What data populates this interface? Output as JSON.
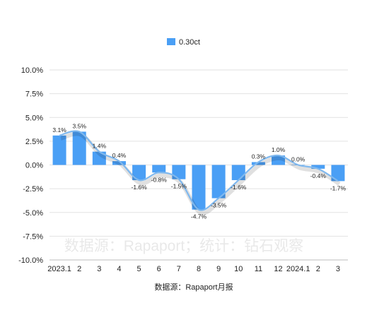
{
  "chart_data": {
    "type": "bar",
    "categories": [
      "2023.1",
      "2",
      "3",
      "4",
      "5",
      "6",
      "7",
      "8",
      "9",
      "10",
      "11",
      "12",
      "2024.1",
      "2",
      "3"
    ],
    "series": [
      {
        "name": "0.30ct",
        "values": [
          3.1,
          3.5,
          1.4,
          0.4,
          -1.6,
          -0.8,
          -1.5,
          -4.7,
          -3.5,
          -1.6,
          0.3,
          1.0,
          0.0,
          -0.4,
          -1.7
        ],
        "data_labels": [
          "3.1%",
          "3.5%",
          "1.4%",
          "0.4%",
          "-1.6%",
          "-0.8%",
          "-1.5%",
          "-4.7%",
          "-3.5%",
          "-1.6%",
          "0.3%",
          "1.0%",
          "0.0%",
          "-0.4%",
          "-1.7%"
        ],
        "color": "#4a9ff5"
      }
    ],
    "trendline": {
      "color": "#7fb8ee"
    },
    "ylim": [
      -10,
      10
    ],
    "yticks": [
      10,
      7.5,
      5,
      2.5,
      0,
      -2.5,
      -5,
      -7.5,
      -10
    ],
    "ytick_labels": [
      "10.0%",
      "7.5%",
      "5.0%",
      "2.5%",
      "0.0%",
      "-2.5%",
      "-5.0%",
      "-7.5%",
      "-10.0%"
    ],
    "grid": true,
    "legend": {
      "position": "top-center"
    },
    "watermark": "数据源：Rapaport；统计：钻石观察",
    "source_note": "数据源：Rapaport月报"
  }
}
